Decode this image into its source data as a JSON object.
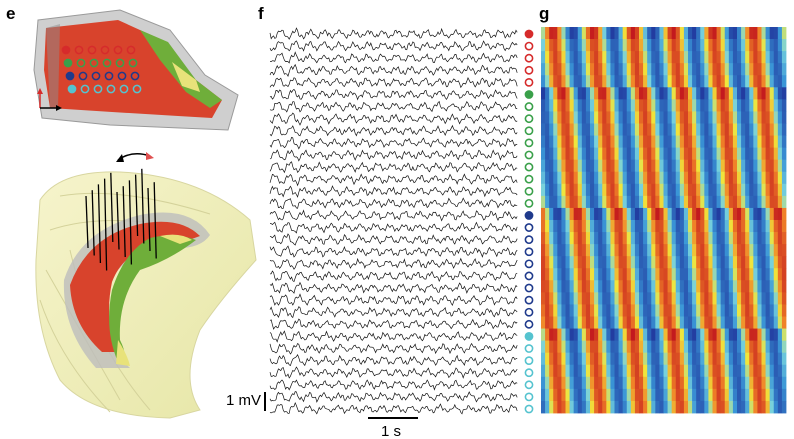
{
  "panels": {
    "e": "e",
    "f": "f",
    "g": "g"
  },
  "scale_bars": {
    "voltage": "1 mV",
    "time": "1 s"
  },
  "channel_groups": [
    {
      "color": "#d62b2b",
      "count": 5
    },
    {
      "color": "#3aa04a",
      "count": 10
    },
    {
      "color": "#1f3a8c",
      "count": 10
    },
    {
      "color": "#55c3cf",
      "count": 7
    }
  ],
  "colors": {
    "tissue_red": "#d8432c",
    "tissue_green": "#6fae3a",
    "tissue_yellow": "#e8e27a",
    "hippocampus_shell": "#f3f1bd",
    "trace": "#111111",
    "heatmap_low": "#2a5fb8",
    "heatmap_mid": "#f2e63a",
    "heatmap_high": "#c21e1e"
  }
}
